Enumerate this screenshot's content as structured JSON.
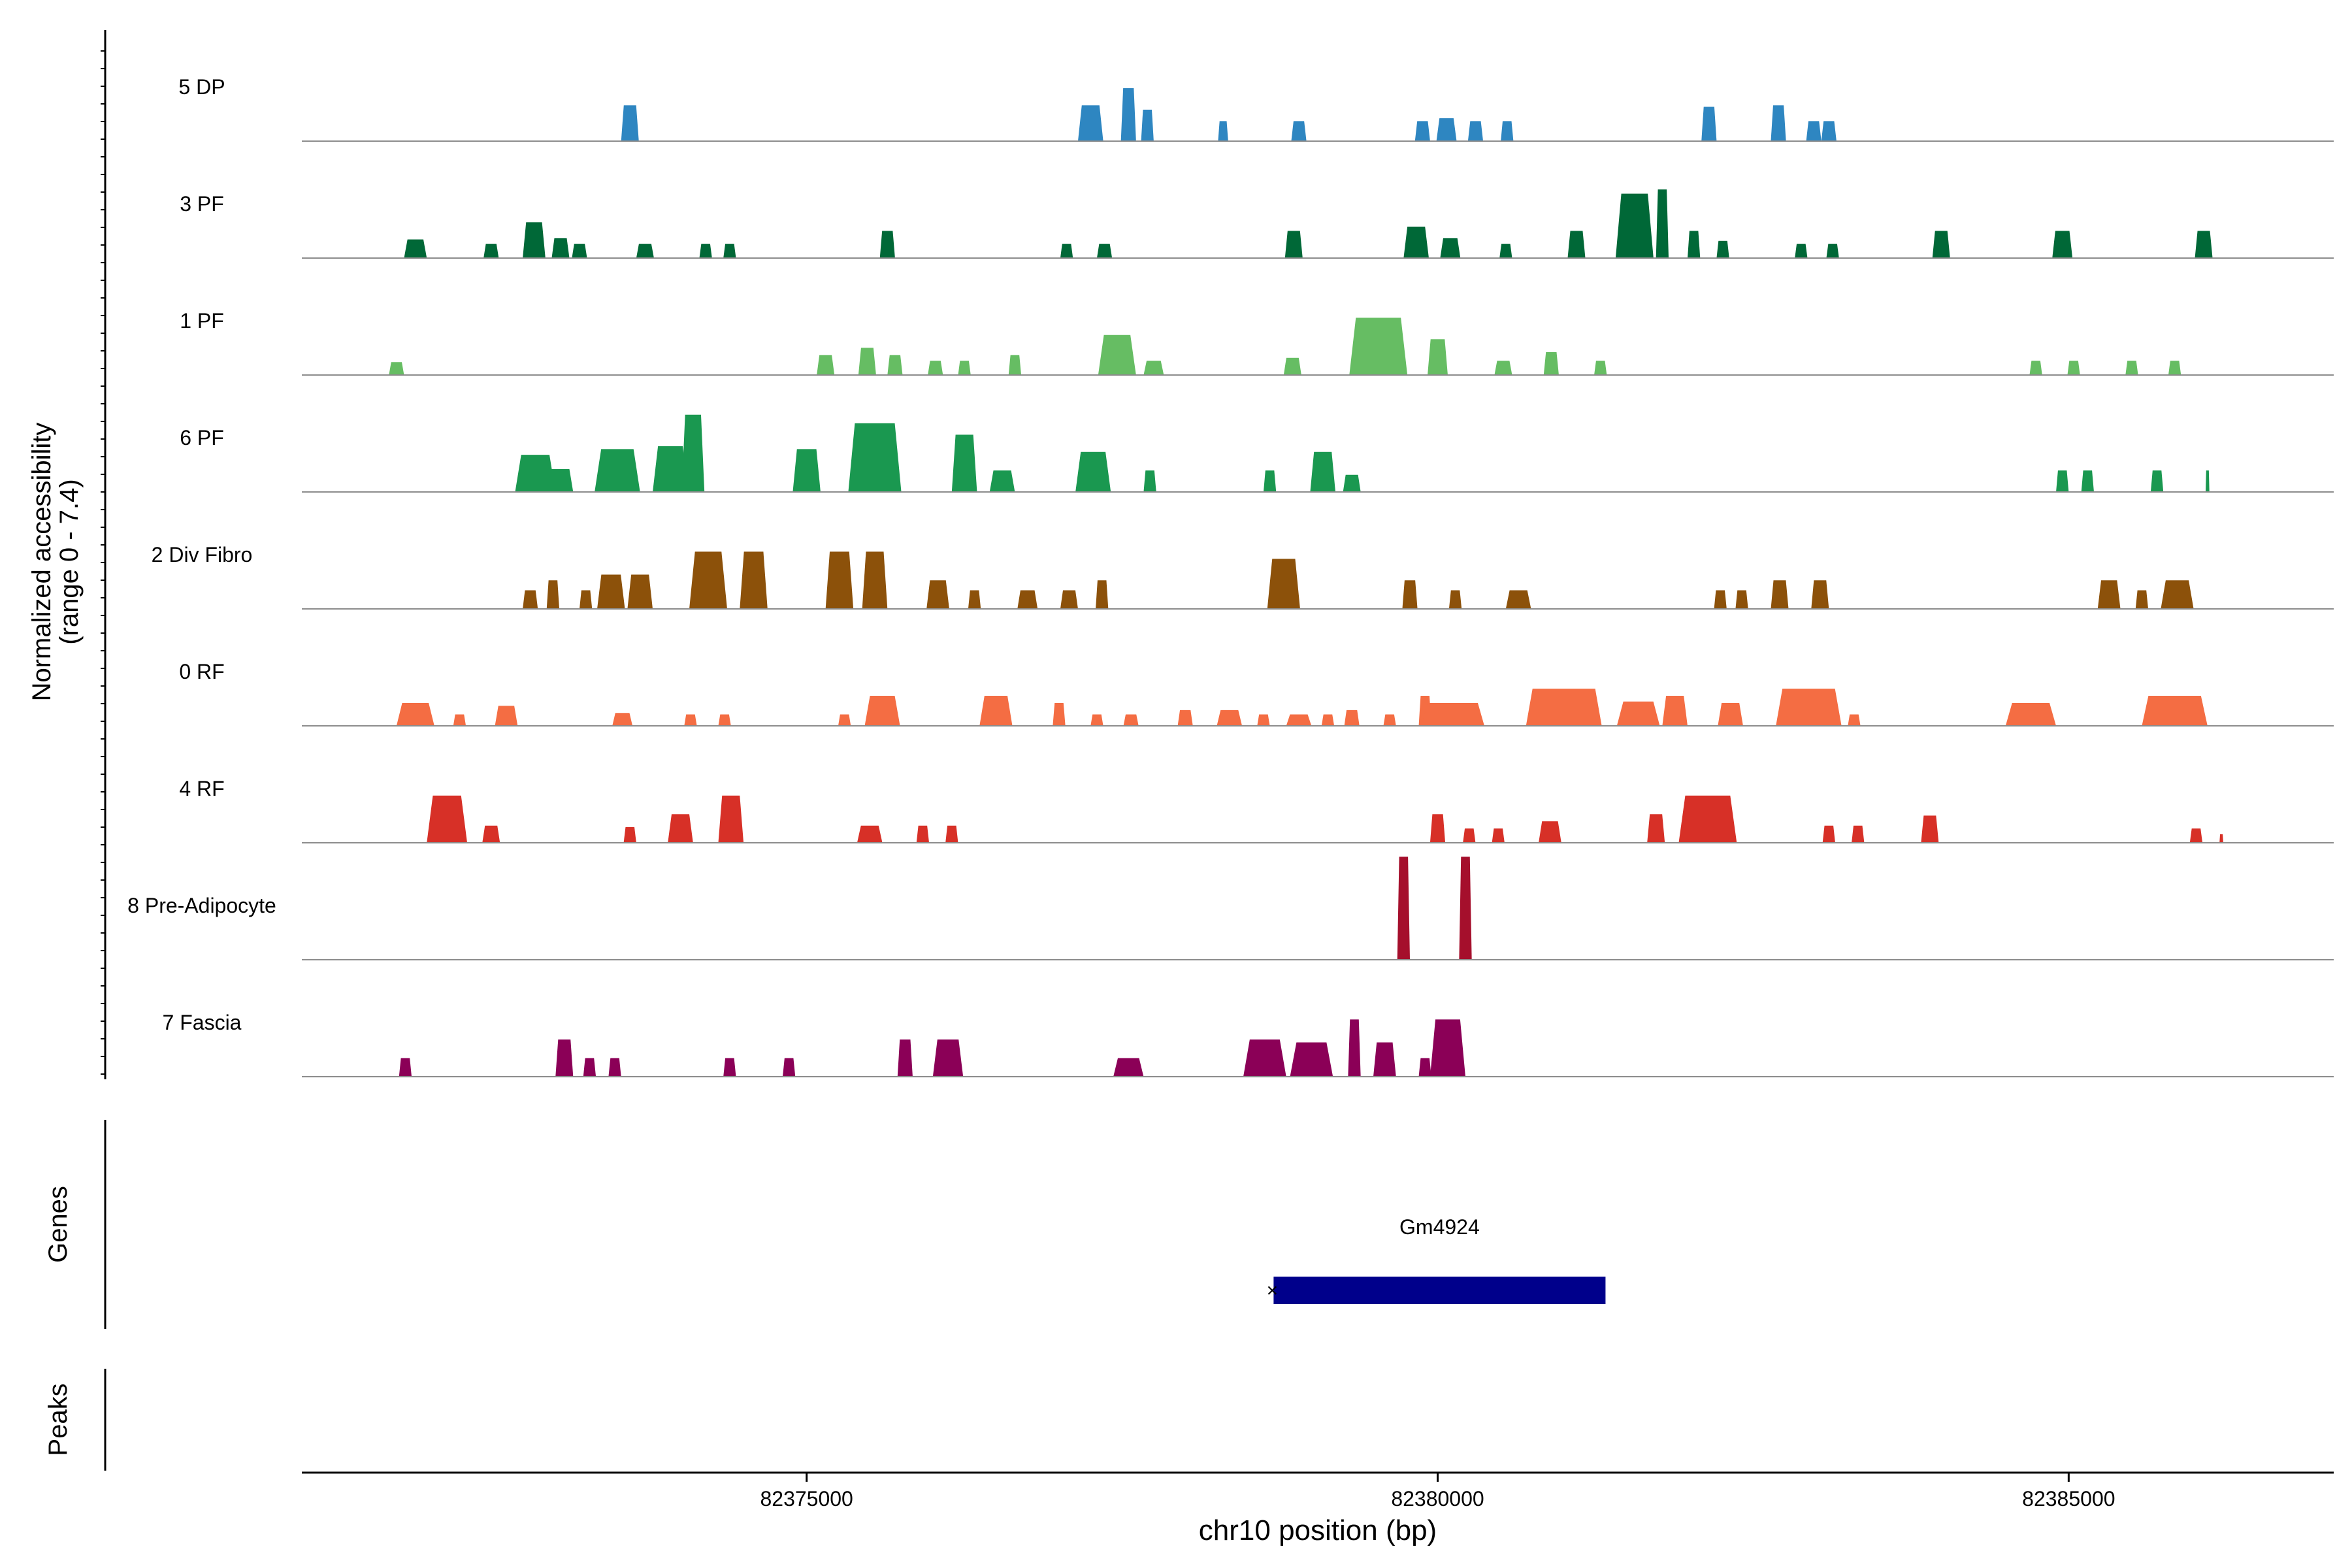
{
  "chart_data": {
    "type": "area",
    "title": "",
    "colors": {
      "axis": "#000000",
      "tick_label": "#4d4d4d",
      "baseline": "#8c8c8c"
    },
    "y_axis": {
      "label_line1": "Normalized accessibility",
      "label_line2": "(range 0 - 7.4)",
      "range": [
        0,
        7.4
      ]
    },
    "x_axis": {
      "label": "chr10 position (bp)",
      "range": [
        82371000,
        82387100
      ],
      "ticks": [
        {
          "value": 82375000,
          "label": "82375000"
        },
        {
          "value": 82380000,
          "label": "82380000"
        },
        {
          "value": 82385000,
          "label": "82385000"
        }
      ]
    },
    "tracks": [
      {
        "name": "5 DP",
        "color": "#2e86c1",
        "peaks": [
          [
            82373600,
            0.14,
            2.5
          ],
          [
            82375700,
            0.1,
            0.0
          ],
          [
            82377250,
            0.2,
            2.5
          ],
          [
            82377550,
            0.12,
            3.7
          ],
          [
            82377700,
            0.1,
            2.2
          ],
          [
            82378300,
            0.08,
            1.4
          ],
          [
            82378900,
            0.12,
            1.4
          ],
          [
            82379880,
            0.12,
            1.4
          ],
          [
            82380070,
            0.16,
            1.6
          ],
          [
            82380300,
            0.12,
            1.4
          ],
          [
            82380550,
            0.1,
            1.4
          ],
          [
            82382150,
            0.12,
            2.4
          ],
          [
            82382700,
            0.12,
            2.5
          ],
          [
            82382980,
            0.12,
            1.4
          ],
          [
            82383100,
            0.12,
            1.4
          ]
        ]
      },
      {
        "name": "3 PF",
        "color": "#006837",
        "peaks": [
          [
            82371900,
            0.18,
            1.3
          ],
          [
            82372500,
            0.12,
            1.0
          ],
          [
            82372840,
            0.18,
            2.5
          ],
          [
            82373050,
            0.14,
            1.4
          ],
          [
            82373200,
            0.12,
            1.0
          ],
          [
            82373720,
            0.14,
            1.0
          ],
          [
            82374200,
            0.1,
            1.0
          ],
          [
            82374390,
            0.1,
            1.0
          ],
          [
            82375640,
            0.12,
            1.9
          ],
          [
            82377060,
            0.1,
            1.0
          ],
          [
            82377360,
            0.12,
            1.0
          ],
          [
            82378860,
            0.14,
            1.9
          ],
          [
            82379830,
            0.2,
            2.2
          ],
          [
            82380100,
            0.16,
            1.4
          ],
          [
            82380540,
            0.1,
            1.0
          ],
          [
            82381100,
            0.14,
            1.9
          ],
          [
            82381560,
            0.3,
            4.5
          ],
          [
            82381780,
            0.1,
            4.8
          ],
          [
            82382030,
            0.1,
            1.9
          ],
          [
            82382260,
            0.1,
            1.2
          ],
          [
            82382880,
            0.1,
            1.0
          ],
          [
            82383130,
            0.1,
            1.0
          ],
          [
            82383990,
            0.14,
            1.9
          ],
          [
            82384950,
            0.16,
            1.9
          ],
          [
            82386070,
            0.14,
            1.9
          ]
        ]
      },
      {
        "name": "1 PF",
        "color": "#66bd63",
        "peaks": [
          [
            82371750,
            0.12,
            0.9
          ],
          [
            82375150,
            0.14,
            1.4
          ],
          [
            82375480,
            0.14,
            1.9
          ],
          [
            82375700,
            0.12,
            1.4
          ],
          [
            82376020,
            0.12,
            1.0
          ],
          [
            82376250,
            0.1,
            1.0
          ],
          [
            82376650,
            0.1,
            1.4
          ],
          [
            82377460,
            0.3,
            2.8
          ],
          [
            82377750,
            0.16,
            1.0
          ],
          [
            82378850,
            0.14,
            1.2
          ],
          [
            82379530,
            0.46,
            4.0
          ],
          [
            82380000,
            0.16,
            2.5
          ],
          [
            82380520,
            0.14,
            1.0
          ],
          [
            82380900,
            0.12,
            1.6
          ],
          [
            82381290,
            0.1,
            1.0
          ],
          [
            82384740,
            0.1,
            1.0
          ],
          [
            82385040,
            0.1,
            1.0
          ],
          [
            82385500,
            0.1,
            1.0
          ],
          [
            82385840,
            0.1,
            1.0
          ]
        ]
      },
      {
        "name": "6 PF",
        "color": "#1a9850",
        "peaks": [
          [
            82372850,
            0.32,
            2.6
          ],
          [
            82373050,
            0.2,
            1.6
          ],
          [
            82373500,
            0.36,
            3.0
          ],
          [
            82373920,
            0.28,
            3.2
          ],
          [
            82374100,
            0.18,
            5.4
          ],
          [
            82375000,
            0.22,
            3.0
          ],
          [
            82375540,
            0.42,
            4.8
          ],
          [
            82376250,
            0.2,
            4.0
          ],
          [
            82376550,
            0.2,
            1.5
          ],
          [
            82377270,
            0.28,
            2.8
          ],
          [
            82377720,
            0.1,
            1.5
          ],
          [
            82378670,
            0.1,
            1.5
          ],
          [
            82379090,
            0.2,
            2.8
          ],
          [
            82379320,
            0.14,
            1.2
          ],
          [
            82384950,
            0.1,
            1.5
          ],
          [
            82385150,
            0.1,
            1.5
          ],
          [
            82385700,
            0.1,
            1.5
          ],
          [
            82386100,
            0.03,
            1.5
          ]
        ]
      },
      {
        "name": "2 Div Fibro",
        "color": "#8c510a",
        "peaks": [
          [
            82372810,
            0.12,
            1.3
          ],
          [
            82372990,
            0.1,
            2.0
          ],
          [
            82373250,
            0.1,
            1.3
          ],
          [
            82373450,
            0.22,
            2.4
          ],
          [
            82373680,
            0.2,
            2.4
          ],
          [
            82374220,
            0.3,
            4.0
          ],
          [
            82374580,
            0.22,
            4.0
          ],
          [
            82375260,
            0.22,
            4.0
          ],
          [
            82375540,
            0.2,
            4.0
          ],
          [
            82376040,
            0.18,
            2.0
          ],
          [
            82376330,
            0.1,
            1.3
          ],
          [
            82376750,
            0.16,
            1.3
          ],
          [
            82377080,
            0.14,
            1.3
          ],
          [
            82377340,
            0.1,
            2.0
          ],
          [
            82378780,
            0.26,
            3.5
          ],
          [
            82379780,
            0.12,
            2.0
          ],
          [
            82380140,
            0.1,
            1.3
          ],
          [
            82380640,
            0.2,
            1.3
          ],
          [
            82382240,
            0.1,
            1.3
          ],
          [
            82382410,
            0.1,
            1.3
          ],
          [
            82382710,
            0.14,
            2.0
          ],
          [
            82383030,
            0.14,
            2.0
          ],
          [
            82385320,
            0.18,
            2.0
          ],
          [
            82385580,
            0.1,
            1.3
          ],
          [
            82385860,
            0.26,
            2.0
          ]
        ]
      },
      {
        "name": "0 RF",
        "color": "#f46d43",
        "peaks": [
          [
            82371900,
            0.3,
            1.6
          ],
          [
            82372250,
            0.1,
            0.8
          ],
          [
            82372620,
            0.18,
            1.4
          ],
          [
            82373540,
            0.16,
            0.9
          ],
          [
            82374080,
            0.1,
            0.8
          ],
          [
            82374350,
            0.1,
            0.8
          ],
          [
            82375300,
            0.1,
            0.8
          ],
          [
            82375600,
            0.28,
            2.1
          ],
          [
            82376500,
            0.26,
            2.1
          ],
          [
            82377000,
            0.1,
            1.6
          ],
          [
            82377300,
            0.1,
            0.8
          ],
          [
            82377570,
            0.12,
            0.8
          ],
          [
            82378000,
            0.12,
            1.1
          ],
          [
            82378350,
            0.2,
            1.1
          ],
          [
            82378620,
            0.1,
            0.8
          ],
          [
            82378900,
            0.2,
            0.8
          ],
          [
            82379130,
            0.1,
            0.8
          ],
          [
            82379320,
            0.12,
            1.1
          ],
          [
            82379620,
            0.1,
            0.8
          ],
          [
            82379900,
            0.1,
            2.1
          ],
          [
            82380120,
            0.5,
            1.6
          ],
          [
            82381000,
            0.6,
            2.6
          ],
          [
            82381590,
            0.34,
            1.7
          ],
          [
            82381880,
            0.2,
            2.1
          ],
          [
            82382320,
            0.2,
            1.6
          ],
          [
            82382940,
            0.52,
            2.6
          ],
          [
            82383300,
            0.1,
            0.8
          ],
          [
            82384700,
            0.4,
            1.6
          ],
          [
            82385840,
            0.52,
            2.1
          ]
        ]
      },
      {
        "name": "4 RF",
        "color": "#d73027",
        "peaks": [
          [
            82372150,
            0.32,
            3.3
          ],
          [
            82372500,
            0.14,
            1.2
          ],
          [
            82373600,
            0.1,
            1.1
          ],
          [
            82374000,
            0.2,
            2.0
          ],
          [
            82374400,
            0.2,
            3.3
          ],
          [
            82375500,
            0.2,
            1.2
          ],
          [
            82375920,
            0.1,
            1.2
          ],
          [
            82376150,
            0.1,
            1.2
          ],
          [
            82380000,
            0.12,
            2.0
          ],
          [
            82380250,
            0.1,
            1.0
          ],
          [
            82380480,
            0.1,
            1.0
          ],
          [
            82380890,
            0.18,
            1.5
          ],
          [
            82381730,
            0.14,
            2.0
          ],
          [
            82382140,
            0.46,
            3.3
          ],
          [
            82383100,
            0.1,
            1.2
          ],
          [
            82383330,
            0.1,
            1.2
          ],
          [
            82383900,
            0.14,
            1.9
          ],
          [
            82386010,
            0.1,
            1.0
          ],
          [
            82386210,
            0.03,
            0.6
          ]
        ]
      },
      {
        "name": "8 Pre-Adipocyte",
        "color": "#a50f2c",
        "peaks": [
          [
            82379730,
            0.1,
            7.2
          ],
          [
            82380220,
            0.1,
            7.2
          ]
        ]
      },
      {
        "name": "7 Fascia",
        "color": "#8b0057",
        "peaks": [
          [
            82371820,
            0.1,
            1.3
          ],
          [
            82373080,
            0.14,
            2.6
          ],
          [
            82373280,
            0.1,
            1.3
          ],
          [
            82373480,
            0.1,
            1.3
          ],
          [
            82374390,
            0.1,
            1.3
          ],
          [
            82374860,
            0.1,
            1.3
          ],
          [
            82375780,
            0.12,
            2.6
          ],
          [
            82376120,
            0.24,
            2.6
          ],
          [
            82377550,
            0.24,
            1.3
          ],
          [
            82378630,
            0.34,
            2.6
          ],
          [
            82379000,
            0.34,
            2.4
          ],
          [
            82379340,
            0.1,
            4.0
          ],
          [
            82379580,
            0.18,
            2.4
          ],
          [
            82379900,
            0.1,
            1.3
          ],
          [
            82380080,
            0.28,
            4.0
          ]
        ]
      }
    ],
    "genes_label": "Genes",
    "peaks_label": "Peaks",
    "gene": {
      "name": "Gm4924",
      "start": 82378700,
      "end": 82381330,
      "color": "#00008b",
      "strand_glyph": "×"
    }
  }
}
